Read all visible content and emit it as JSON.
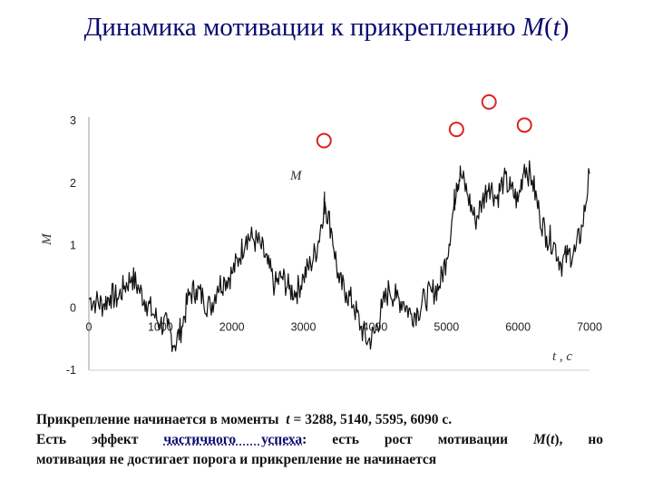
{
  "slide": {
    "title_prefix": "Динамика мотивации к прикреплению ",
    "title_symbol": "M",
    "title_arg": "t"
  },
  "chart_data": {
    "type": "line",
    "xlabel": "t , c",
    "ylabel": "M",
    "series_annotation": "M",
    "xlim": [
      0,
      7000
    ],
    "ylim": [
      -1,
      3
    ],
    "xticks": [
      0,
      1000,
      2000,
      3000,
      4000,
      5000,
      6000,
      7000
    ],
    "xtick_labels": [
      "0",
      "1000",
      "2000",
      "3000",
      "4000",
      "5000",
      "6000",
      "7000"
    ],
    "yticks": [
      -1,
      0,
      1,
      2,
      3
    ],
    "ytick_labels": [
      "-1",
      "0",
      "1",
      "2",
      "3"
    ],
    "grid": false,
    "attachment_times": [
      3288,
      5140,
      5595,
      6090
    ],
    "marker_color": "#dd2222",
    "line_color": "#111111",
    "series": [
      {
        "x": [
          0,
          100,
          200,
          300,
          400,
          500,
          600,
          700,
          800,
          900,
          1000,
          1100,
          1200,
          1300,
          1400,
          1500,
          1600,
          1700,
          1800,
          1900,
          2000,
          2100,
          2200,
          2300,
          2400,
          2500,
          2600,
          2700,
          2800,
          2900,
          3000,
          3100,
          3200,
          3288,
          3300,
          3400,
          3500,
          3600,
          3700,
          3800,
          3900,
          4000,
          4100,
          4200,
          4300,
          4400,
          4500,
          4600,
          4700,
          4800,
          4900,
          5000,
          5100,
          5140,
          5200,
          5300,
          5400,
          5500,
          5595,
          5700,
          5800,
          5900,
          6000,
          6090,
          6200,
          6300,
          6400,
          6500,
          6600,
          6700,
          6800,
          6900,
          7000
        ],
        "y": [
          0.15,
          0.1,
          0.05,
          0.2,
          0.15,
          0.35,
          0.5,
          0.3,
          0.1,
          -0.1,
          -0.25,
          -0.3,
          -0.6,
          -0.3,
          0.2,
          0.3,
          0.15,
          0.0,
          0.35,
          0.45,
          0.55,
          0.8,
          1.15,
          1.1,
          1.0,
          0.7,
          0.35,
          0.5,
          0.3,
          0.25,
          0.5,
          0.7,
          1.0,
          1.65,
          1.7,
          1.2,
          0.4,
          0.25,
          0.05,
          -0.3,
          -0.55,
          -0.4,
          0.0,
          0.3,
          0.15,
          0.1,
          -0.1,
          -0.05,
          0.15,
          0.25,
          0.35,
          0.8,
          1.6,
          2.0,
          2.15,
          1.8,
          1.4,
          1.7,
          2.0,
          1.75,
          2.05,
          1.9,
          1.7,
          2.3,
          2.05,
          1.5,
          1.15,
          1.05,
          0.7,
          0.85,
          0.9,
          1.3,
          2.15
        ]
      }
    ]
  },
  "caption": {
    "line1_prefix": "Прикрепление начинается в моменты",
    "line1_var": "t",
    "line1_rest": " = 3288, 5140, 5595, 6090 с.",
    "line2_a": "Есть эффект ",
    "line2_accent": "частичного успеха",
    "line2_b": ": есть рост мотивации ",
    "line2_var": "M",
    "line2_arg": "t",
    "line2_c": "), но",
    "line3": "мотивация не достигает порога и прикрепление не начинается"
  }
}
